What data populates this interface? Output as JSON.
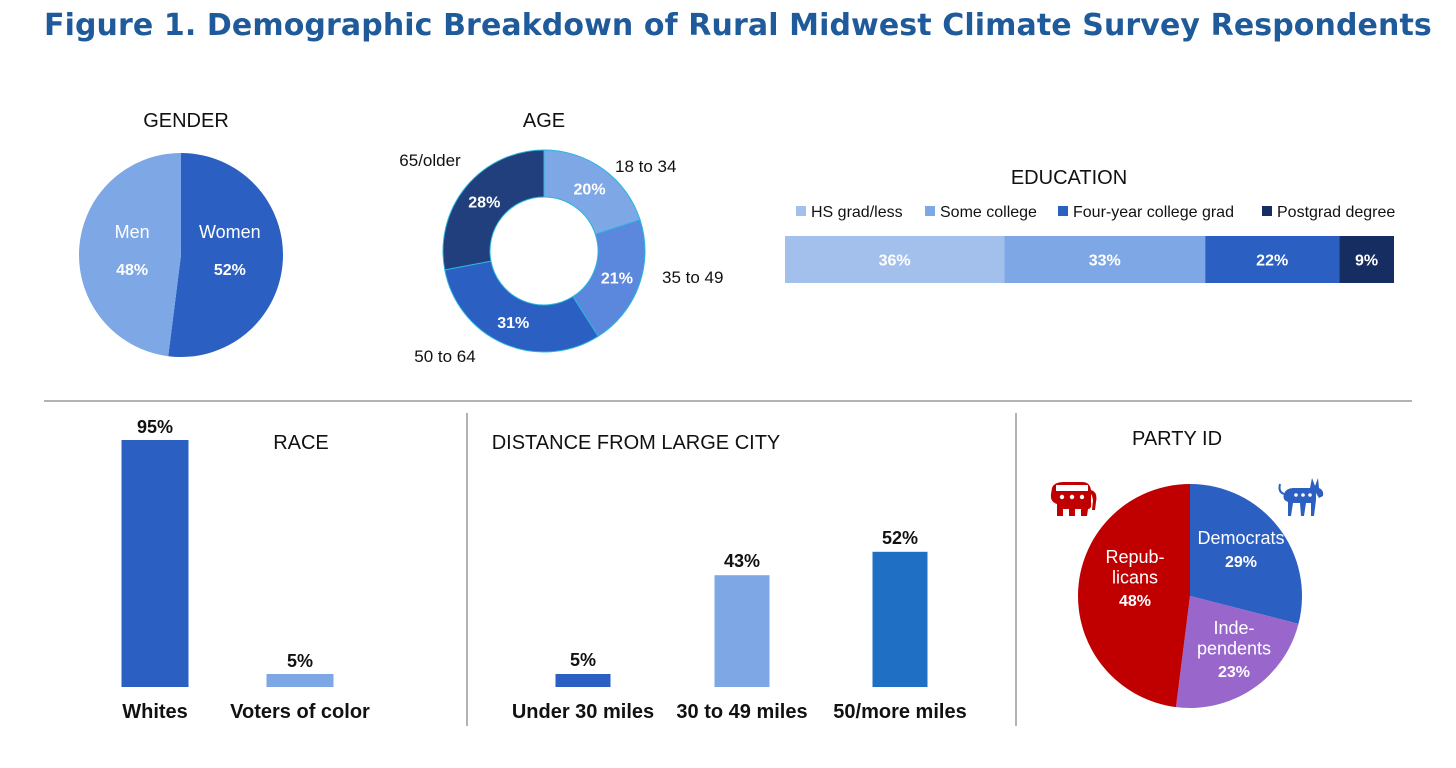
{
  "title": "Figure 1. Demographic Breakdown of Rural Midwest Climate Survey Respondents",
  "colors": {
    "title": "#1f5a9a",
    "blue_dark": "#2b5fc1",
    "blue_mid": "#5b87dd",
    "blue_light": "#7ea7e6",
    "blue_pale": "#a3c0ec",
    "navy": "#213f7d",
    "navy_deep": "#152d61",
    "republican": "#c00000",
    "independent": "#9966cc",
    "cyan_edge": "#29b6e0"
  },
  "chart_data": [
    {
      "id": "gender",
      "type": "pie",
      "title": "GENDER",
      "slices": [
        {
          "label": "Women",
          "value": 52,
          "display": "52%"
        },
        {
          "label": "Men",
          "value": 48,
          "display": "48%"
        }
      ]
    },
    {
      "id": "age",
      "type": "pie",
      "subtype": "donut",
      "title": "AGE",
      "slices": [
        {
          "label": "18 to 34",
          "value": 20,
          "display": "20%"
        },
        {
          "label": "35 to 49",
          "value": 21,
          "display": "21%"
        },
        {
          "label": "50 to 64",
          "value": 31,
          "display": "31%"
        },
        {
          "label": "65/older",
          "value": 28,
          "display": "28%"
        }
      ]
    },
    {
      "id": "education",
      "type": "bar",
      "subtype": "stacked-horizontal",
      "title": "EDUCATION",
      "legend_position": "top",
      "series": [
        {
          "name": "HS grad/less",
          "value": 36,
          "display": "36%"
        },
        {
          "name": "Some college",
          "value": 33,
          "display": "33%"
        },
        {
          "name": "Four-year college grad",
          "value": 22,
          "display": "22%"
        },
        {
          "name": "Postgrad degree",
          "value": 9,
          "display": "9%"
        }
      ]
    },
    {
      "id": "race",
      "type": "bar",
      "title": "RACE",
      "categories": [
        "Whites",
        "Voters of color"
      ],
      "values": [
        95,
        5
      ],
      "labels": [
        "95%",
        "5%"
      ],
      "ylim": [
        0,
        95
      ]
    },
    {
      "id": "distance",
      "type": "bar",
      "title": "DISTANCE FROM LARGE CITY",
      "categories": [
        "Under 30 miles",
        "30 to 49 miles",
        "50/more miles"
      ],
      "values": [
        5,
        43,
        52
      ],
      "labels": [
        "5%",
        "43%",
        "52%"
      ],
      "ylim": [
        0,
        95
      ]
    },
    {
      "id": "party",
      "type": "pie",
      "title": "PARTY ID",
      "slices": [
        {
          "label": "Democrats",
          "value": 29,
          "display": "29%"
        },
        {
          "label": "Inde-\npendents",
          "value": 23,
          "display": "23%"
        },
        {
          "label": "Repub-\nlicans",
          "value": 48,
          "display": "48%"
        }
      ],
      "icons": [
        "republican-elephant-icon",
        "democratic-donkey-icon"
      ]
    }
  ]
}
